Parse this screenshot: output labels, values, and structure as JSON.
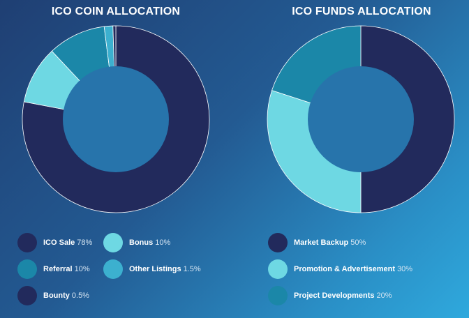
{
  "colors": {
    "navy": "#222a5c",
    "light_cyan": "#6ed8e3",
    "teal": "#1b87a8",
    "mid_cyan": "#3cb0cf",
    "hole": "#2774ab"
  },
  "chart_data": [
    {
      "type": "pie",
      "title": "ICO COIN ALLOCATION",
      "slices": [
        {
          "label": "ICO Sale",
          "value": 78,
          "value_label": "78%",
          "color": "#222a5c"
        },
        {
          "label": "Bonus",
          "value": 10,
          "value_label": "10%",
          "color": "#6ed8e3"
        },
        {
          "label": "Referral",
          "value": 10,
          "value_label": "10%",
          "color": "#1b87a8"
        },
        {
          "label": "Other Listings",
          "value": 1.5,
          "value_label": "1.5%",
          "color": "#3cb0cf"
        },
        {
          "label": "Bounty",
          "value": 0.5,
          "value_label": "0.5%",
          "color": "#222a5c"
        }
      ],
      "legend": "bottom"
    },
    {
      "type": "pie",
      "title": "ICO FUNDS ALLOCATION",
      "slices": [
        {
          "label": "Market Backup",
          "value": 50,
          "value_label": "50%",
          "color": "#222a5c"
        },
        {
          "label": "Promotion & Advertisement",
          "value": 30,
          "value_label": "30%",
          "color": "#6ed8e3"
        },
        {
          "label": "Project Developments",
          "value": 20,
          "value_label": "20%",
          "color": "#1b87a8"
        }
      ],
      "legend": "bottom"
    }
  ]
}
